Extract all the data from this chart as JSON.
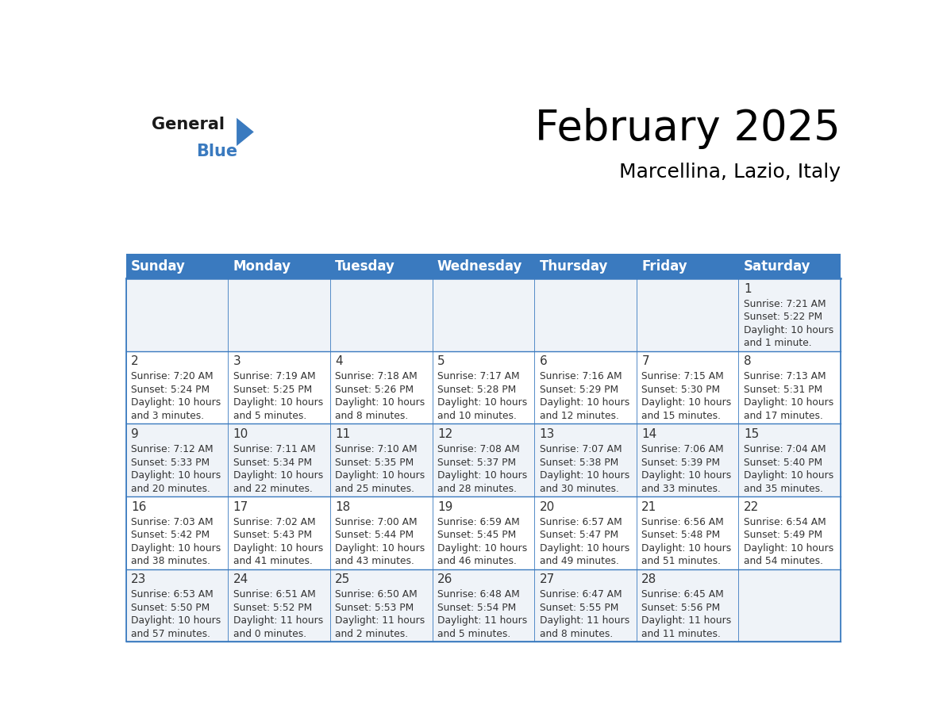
{
  "title": "February 2025",
  "subtitle": "Marcellina, Lazio, Italy",
  "header_color": "#3a7abf",
  "header_text_color": "#ffffff",
  "cell_bg_light": "#eff3f8",
  "cell_bg_white": "#ffffff",
  "border_color": "#3a7abf",
  "text_color": "#333333",
  "day_names": [
    "Sunday",
    "Monday",
    "Tuesday",
    "Wednesday",
    "Thursday",
    "Friday",
    "Saturday"
  ],
  "title_fontsize": 38,
  "subtitle_fontsize": 18,
  "header_fontsize": 12,
  "day_num_fontsize": 11,
  "cell_fontsize": 8.8,
  "days": [
    {
      "day": 1,
      "col": 6,
      "row": 0,
      "sunrise": "7:21 AM",
      "sunset": "5:22 PM",
      "daylight_hrs": "10 hours",
      "daylight_min": "and 1 minute."
    },
    {
      "day": 2,
      "col": 0,
      "row": 1,
      "sunrise": "7:20 AM",
      "sunset": "5:24 PM",
      "daylight_hrs": "10 hours",
      "daylight_min": "and 3 minutes."
    },
    {
      "day": 3,
      "col": 1,
      "row": 1,
      "sunrise": "7:19 AM",
      "sunset": "5:25 PM",
      "daylight_hrs": "10 hours",
      "daylight_min": "and 5 minutes."
    },
    {
      "day": 4,
      "col": 2,
      "row": 1,
      "sunrise": "7:18 AM",
      "sunset": "5:26 PM",
      "daylight_hrs": "10 hours",
      "daylight_min": "and 8 minutes."
    },
    {
      "day": 5,
      "col": 3,
      "row": 1,
      "sunrise": "7:17 AM",
      "sunset": "5:28 PM",
      "daylight_hrs": "10 hours",
      "daylight_min": "and 10 minutes."
    },
    {
      "day": 6,
      "col": 4,
      "row": 1,
      "sunrise": "7:16 AM",
      "sunset": "5:29 PM",
      "daylight_hrs": "10 hours",
      "daylight_min": "and 12 minutes."
    },
    {
      "day": 7,
      "col": 5,
      "row": 1,
      "sunrise": "7:15 AM",
      "sunset": "5:30 PM",
      "daylight_hrs": "10 hours",
      "daylight_min": "and 15 minutes."
    },
    {
      "day": 8,
      "col": 6,
      "row": 1,
      "sunrise": "7:13 AM",
      "sunset": "5:31 PM",
      "daylight_hrs": "10 hours",
      "daylight_min": "and 17 minutes."
    },
    {
      "day": 9,
      "col": 0,
      "row": 2,
      "sunrise": "7:12 AM",
      "sunset": "5:33 PM",
      "daylight_hrs": "10 hours",
      "daylight_min": "and 20 minutes."
    },
    {
      "day": 10,
      "col": 1,
      "row": 2,
      "sunrise": "7:11 AM",
      "sunset": "5:34 PM",
      "daylight_hrs": "10 hours",
      "daylight_min": "and 22 minutes."
    },
    {
      "day": 11,
      "col": 2,
      "row": 2,
      "sunrise": "7:10 AM",
      "sunset": "5:35 PM",
      "daylight_hrs": "10 hours",
      "daylight_min": "and 25 minutes."
    },
    {
      "day": 12,
      "col": 3,
      "row": 2,
      "sunrise": "7:08 AM",
      "sunset": "5:37 PM",
      "daylight_hrs": "10 hours",
      "daylight_min": "and 28 minutes."
    },
    {
      "day": 13,
      "col": 4,
      "row": 2,
      "sunrise": "7:07 AM",
      "sunset": "5:38 PM",
      "daylight_hrs": "10 hours",
      "daylight_min": "and 30 minutes."
    },
    {
      "day": 14,
      "col": 5,
      "row": 2,
      "sunrise": "7:06 AM",
      "sunset": "5:39 PM",
      "daylight_hrs": "10 hours",
      "daylight_min": "and 33 minutes."
    },
    {
      "day": 15,
      "col": 6,
      "row": 2,
      "sunrise": "7:04 AM",
      "sunset": "5:40 PM",
      "daylight_hrs": "10 hours",
      "daylight_min": "and 35 minutes."
    },
    {
      "day": 16,
      "col": 0,
      "row": 3,
      "sunrise": "7:03 AM",
      "sunset": "5:42 PM",
      "daylight_hrs": "10 hours",
      "daylight_min": "and 38 minutes."
    },
    {
      "day": 17,
      "col": 1,
      "row": 3,
      "sunrise": "7:02 AM",
      "sunset": "5:43 PM",
      "daylight_hrs": "10 hours",
      "daylight_min": "and 41 minutes."
    },
    {
      "day": 18,
      "col": 2,
      "row": 3,
      "sunrise": "7:00 AM",
      "sunset": "5:44 PM",
      "daylight_hrs": "10 hours",
      "daylight_min": "and 43 minutes."
    },
    {
      "day": 19,
      "col": 3,
      "row": 3,
      "sunrise": "6:59 AM",
      "sunset": "5:45 PM",
      "daylight_hrs": "10 hours",
      "daylight_min": "and 46 minutes."
    },
    {
      "day": 20,
      "col": 4,
      "row": 3,
      "sunrise": "6:57 AM",
      "sunset": "5:47 PM",
      "daylight_hrs": "10 hours",
      "daylight_min": "and 49 minutes."
    },
    {
      "day": 21,
      "col": 5,
      "row": 3,
      "sunrise": "6:56 AM",
      "sunset": "5:48 PM",
      "daylight_hrs": "10 hours",
      "daylight_min": "and 51 minutes."
    },
    {
      "day": 22,
      "col": 6,
      "row": 3,
      "sunrise": "6:54 AM",
      "sunset": "5:49 PM",
      "daylight_hrs": "10 hours",
      "daylight_min": "and 54 minutes."
    },
    {
      "day": 23,
      "col": 0,
      "row": 4,
      "sunrise": "6:53 AM",
      "sunset": "5:50 PM",
      "daylight_hrs": "10 hours",
      "daylight_min": "and 57 minutes."
    },
    {
      "day": 24,
      "col": 1,
      "row": 4,
      "sunrise": "6:51 AM",
      "sunset": "5:52 PM",
      "daylight_hrs": "11 hours",
      "daylight_min": "and 0 minutes."
    },
    {
      "day": 25,
      "col": 2,
      "row": 4,
      "sunrise": "6:50 AM",
      "sunset": "5:53 PM",
      "daylight_hrs": "11 hours",
      "daylight_min": "and 2 minutes."
    },
    {
      "day": 26,
      "col": 3,
      "row": 4,
      "sunrise": "6:48 AM",
      "sunset": "5:54 PM",
      "daylight_hrs": "11 hours",
      "daylight_min": "and 5 minutes."
    },
    {
      "day": 27,
      "col": 4,
      "row": 4,
      "sunrise": "6:47 AM",
      "sunset": "5:55 PM",
      "daylight_hrs": "11 hours",
      "daylight_min": "and 8 minutes."
    },
    {
      "day": 28,
      "col": 5,
      "row": 4,
      "sunrise": "6:45 AM",
      "sunset": "5:56 PM",
      "daylight_hrs": "11 hours",
      "daylight_min": "and 11 minutes."
    }
  ]
}
